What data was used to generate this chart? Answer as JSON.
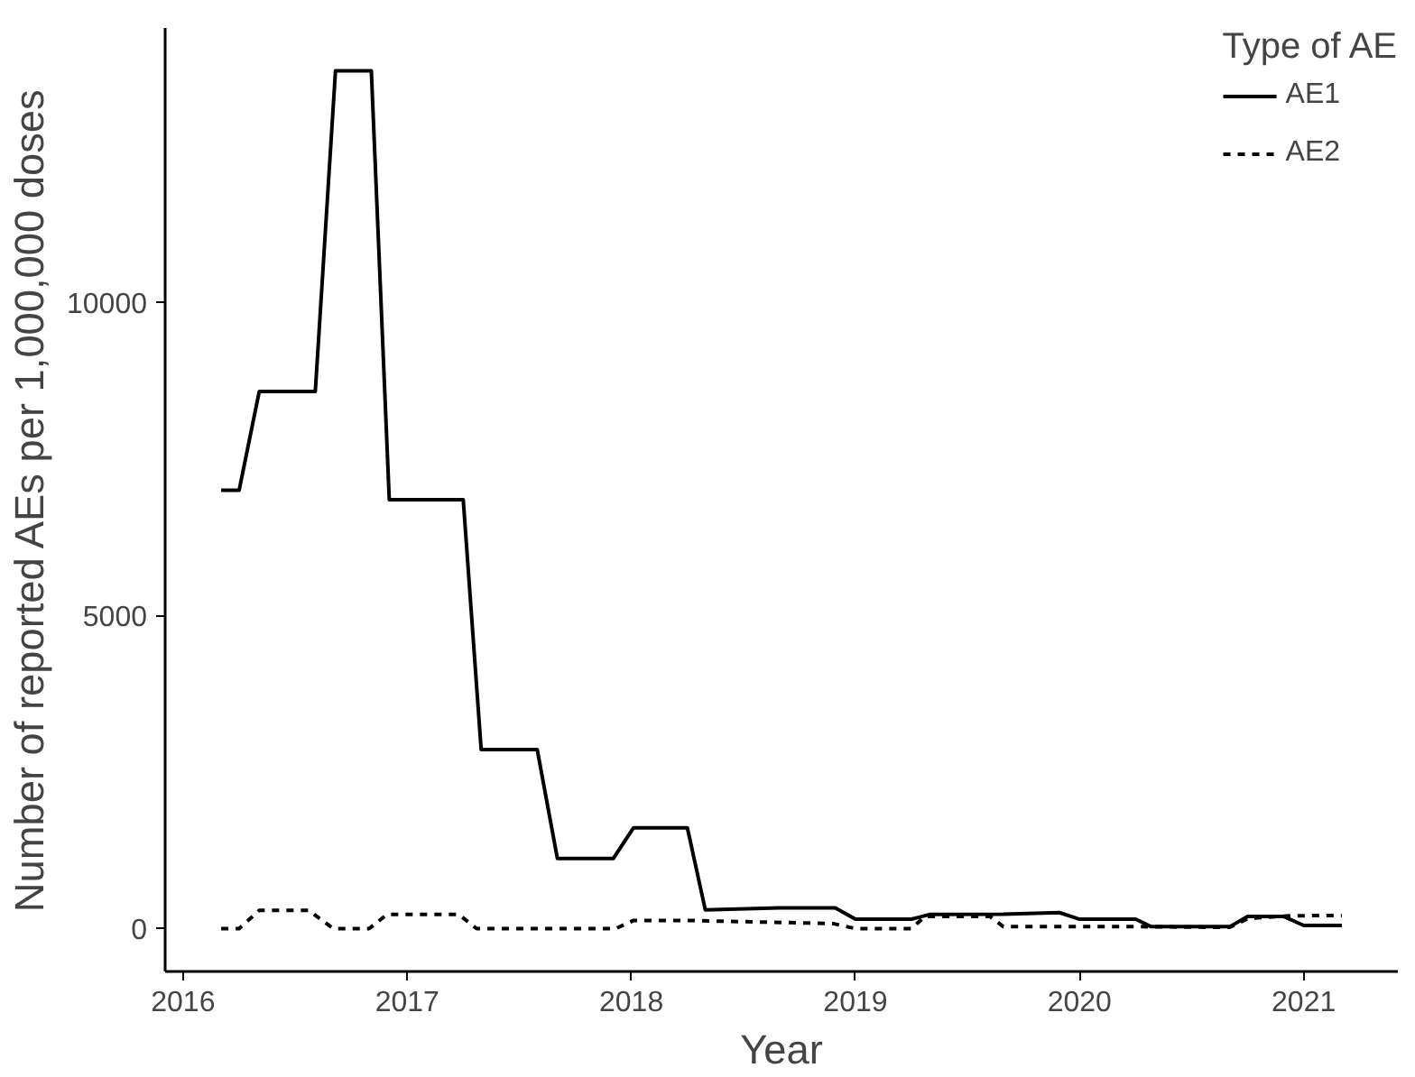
{
  "chart_data": {
    "type": "line",
    "xlabel": "Year",
    "ylabel": "Number of reported AEs per 1,000,000 doses",
    "legend_title": "Type of AE",
    "xlim": [
      2015.92,
      2021.42
    ],
    "xticks": [
      2016,
      2017,
      2018,
      2019,
      2020,
      2021
    ],
    "ylim": [
      -685,
      14385
    ],
    "yticks": [
      0,
      5000,
      10000
    ],
    "grid": false,
    "legend": "top right",
    "series": [
      {
        "name": "AE1",
        "color": "#000000",
        "line_style": "solid",
        "x": [
          2016.17,
          2016.25,
          2016.34,
          2016.59,
          2016.68,
          2016.84,
          2016.92,
          2017.25,
          2017.33,
          2017.58,
          2017.67,
          2017.92,
          2018.01,
          2018.25,
          2018.33,
          2018.66,
          2018.91,
          2019.0,
          2019.25,
          2019.33,
          2019.66,
          2019.91,
          2020.0,
          2020.25,
          2020.32,
          2020.67,
          2020.75,
          2020.91,
          2021.0,
          2021.17
        ],
        "values": [
          7000,
          7000,
          8580,
          8580,
          13700,
          13700,
          6850,
          6850,
          2860,
          2860,
          1120,
          1120,
          1610,
          1610,
          300,
          330,
          330,
          150,
          150,
          225,
          230,
          255,
          150,
          150,
          30,
          30,
          195,
          195,
          50,
          50
        ]
      },
      {
        "name": "AE2",
        "color": "#000000",
        "line_style": "dashed",
        "x": [
          2016.17,
          2016.25,
          2016.34,
          2016.56,
          2016.67,
          2016.83,
          2016.91,
          2017.23,
          2017.31,
          2017.93,
          2018.01,
          2018.25,
          2018.9,
          2019.0,
          2019.25,
          2019.31,
          2019.6,
          2019.66,
          2020.28,
          2020.67,
          2020.75,
          2020.94,
          2021.17
        ],
        "values": [
          0,
          0,
          290,
          290,
          0,
          0,
          225,
          225,
          0,
          0,
          130,
          130,
          80,
          0,
          0,
          195,
          195,
          30,
          30,
          20,
          160,
          205,
          210
        ]
      }
    ]
  }
}
